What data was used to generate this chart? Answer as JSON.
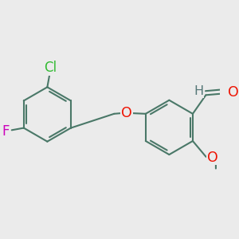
{
  "bg": "#ebebeb",
  "bc": "#4a7868",
  "bw": 1.5,
  "dbo": 0.05,
  "colors": {
    "O": "#ee1100",
    "F": "#cc00bb",
    "Cl": "#33bb33",
    "H": "#557777"
  },
  "fs": 11.5
}
